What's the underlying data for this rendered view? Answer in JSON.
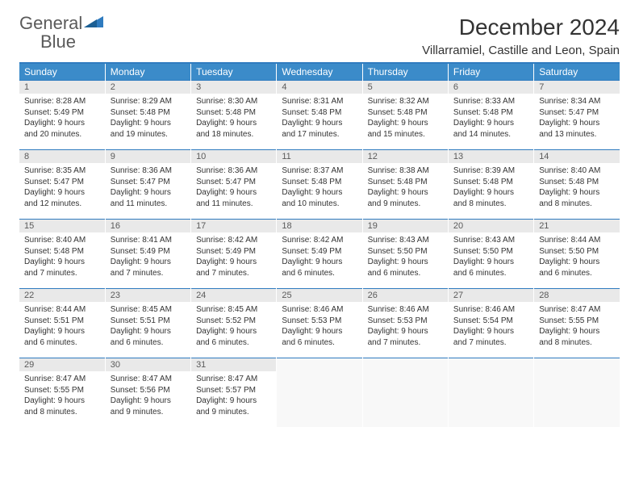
{
  "brand": {
    "part1": "General",
    "part2": "Blue"
  },
  "title": "December 2024",
  "location": "Villarramiel, Castille and Leon, Spain",
  "weekdays": [
    "Sunday",
    "Monday",
    "Tuesday",
    "Wednesday",
    "Thursday",
    "Friday",
    "Saturday"
  ],
  "colors": {
    "header_bg": "#3b8bc9",
    "accent_line": "#2f7bbf",
    "daynum_bg": "#e9e9e9",
    "text": "#333333",
    "muted_text": "#5a5a5a"
  },
  "days": [
    {
      "n": "1",
      "sr": "8:28 AM",
      "ss": "5:49 PM",
      "dl": "9 hours and 20 minutes."
    },
    {
      "n": "2",
      "sr": "8:29 AM",
      "ss": "5:48 PM",
      "dl": "9 hours and 19 minutes."
    },
    {
      "n": "3",
      "sr": "8:30 AM",
      "ss": "5:48 PM",
      "dl": "9 hours and 18 minutes."
    },
    {
      "n": "4",
      "sr": "8:31 AM",
      "ss": "5:48 PM",
      "dl": "9 hours and 17 minutes."
    },
    {
      "n": "5",
      "sr": "8:32 AM",
      "ss": "5:48 PM",
      "dl": "9 hours and 15 minutes."
    },
    {
      "n": "6",
      "sr": "8:33 AM",
      "ss": "5:48 PM",
      "dl": "9 hours and 14 minutes."
    },
    {
      "n": "7",
      "sr": "8:34 AM",
      "ss": "5:47 PM",
      "dl": "9 hours and 13 minutes."
    },
    {
      "n": "8",
      "sr": "8:35 AM",
      "ss": "5:47 PM",
      "dl": "9 hours and 12 minutes."
    },
    {
      "n": "9",
      "sr": "8:36 AM",
      "ss": "5:47 PM",
      "dl": "9 hours and 11 minutes."
    },
    {
      "n": "10",
      "sr": "8:36 AM",
      "ss": "5:47 PM",
      "dl": "9 hours and 11 minutes."
    },
    {
      "n": "11",
      "sr": "8:37 AM",
      "ss": "5:48 PM",
      "dl": "9 hours and 10 minutes."
    },
    {
      "n": "12",
      "sr": "8:38 AM",
      "ss": "5:48 PM",
      "dl": "9 hours and 9 minutes."
    },
    {
      "n": "13",
      "sr": "8:39 AM",
      "ss": "5:48 PM",
      "dl": "9 hours and 8 minutes."
    },
    {
      "n": "14",
      "sr": "8:40 AM",
      "ss": "5:48 PM",
      "dl": "9 hours and 8 minutes."
    },
    {
      "n": "15",
      "sr": "8:40 AM",
      "ss": "5:48 PM",
      "dl": "9 hours and 7 minutes."
    },
    {
      "n": "16",
      "sr": "8:41 AM",
      "ss": "5:49 PM",
      "dl": "9 hours and 7 minutes."
    },
    {
      "n": "17",
      "sr": "8:42 AM",
      "ss": "5:49 PM",
      "dl": "9 hours and 7 minutes."
    },
    {
      "n": "18",
      "sr": "8:42 AM",
      "ss": "5:49 PM",
      "dl": "9 hours and 6 minutes."
    },
    {
      "n": "19",
      "sr": "8:43 AM",
      "ss": "5:50 PM",
      "dl": "9 hours and 6 minutes."
    },
    {
      "n": "20",
      "sr": "8:43 AM",
      "ss": "5:50 PM",
      "dl": "9 hours and 6 minutes."
    },
    {
      "n": "21",
      "sr": "8:44 AM",
      "ss": "5:50 PM",
      "dl": "9 hours and 6 minutes."
    },
    {
      "n": "22",
      "sr": "8:44 AM",
      "ss": "5:51 PM",
      "dl": "9 hours and 6 minutes."
    },
    {
      "n": "23",
      "sr": "8:45 AM",
      "ss": "5:51 PM",
      "dl": "9 hours and 6 minutes."
    },
    {
      "n": "24",
      "sr": "8:45 AM",
      "ss": "5:52 PM",
      "dl": "9 hours and 6 minutes."
    },
    {
      "n": "25",
      "sr": "8:46 AM",
      "ss": "5:53 PM",
      "dl": "9 hours and 6 minutes."
    },
    {
      "n": "26",
      "sr": "8:46 AM",
      "ss": "5:53 PM",
      "dl": "9 hours and 7 minutes."
    },
    {
      "n": "27",
      "sr": "8:46 AM",
      "ss": "5:54 PM",
      "dl": "9 hours and 7 minutes."
    },
    {
      "n": "28",
      "sr": "8:47 AM",
      "ss": "5:55 PM",
      "dl": "9 hours and 8 minutes."
    },
    {
      "n": "29",
      "sr": "8:47 AM",
      "ss": "5:55 PM",
      "dl": "9 hours and 8 minutes."
    },
    {
      "n": "30",
      "sr": "8:47 AM",
      "ss": "5:56 PM",
      "dl": "9 hours and 9 minutes."
    },
    {
      "n": "31",
      "sr": "8:47 AM",
      "ss": "5:57 PM",
      "dl": "9 hours and 9 minutes."
    }
  ],
  "labels": {
    "sunrise": "Sunrise:",
    "sunset": "Sunset:",
    "daylight": "Daylight:"
  }
}
